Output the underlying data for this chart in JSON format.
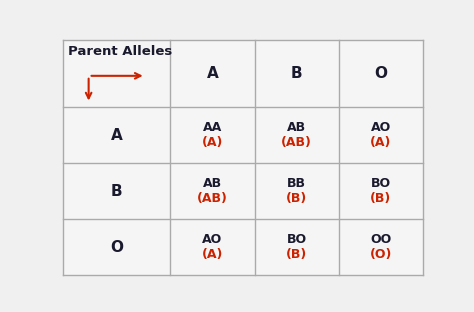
{
  "background_color": "#f0f0f0",
  "cell_bg_color": "#f5f5f5",
  "border_color": "#aaaaaa",
  "black_color": "#1a1a2e",
  "red_color": "#cc2200",
  "header_label": "Parent Alleles",
  "col_headers": [
    "A",
    "B",
    "O"
  ],
  "row_headers": [
    "A",
    "B",
    "O"
  ],
  "cells": [
    [
      [
        "AA",
        "(A)"
      ],
      [
        "AB",
        "(AB)"
      ],
      [
        "AO",
        "(A)"
      ]
    ],
    [
      [
        "AB",
        "(AB)"
      ],
      [
        "BB",
        "(B)"
      ],
      [
        "BO",
        "(B)"
      ]
    ],
    [
      [
        "AO",
        "(A)"
      ],
      [
        "BO",
        "(B)"
      ],
      [
        "OO",
        "(O)"
      ]
    ]
  ],
  "figsize": [
    4.74,
    3.12
  ],
  "dpi": 100,
  "header_fontsize": 9.5,
  "cell_fontsize": 9,
  "label_fontsize": 11,
  "n_cols": 4,
  "n_rows": 4
}
